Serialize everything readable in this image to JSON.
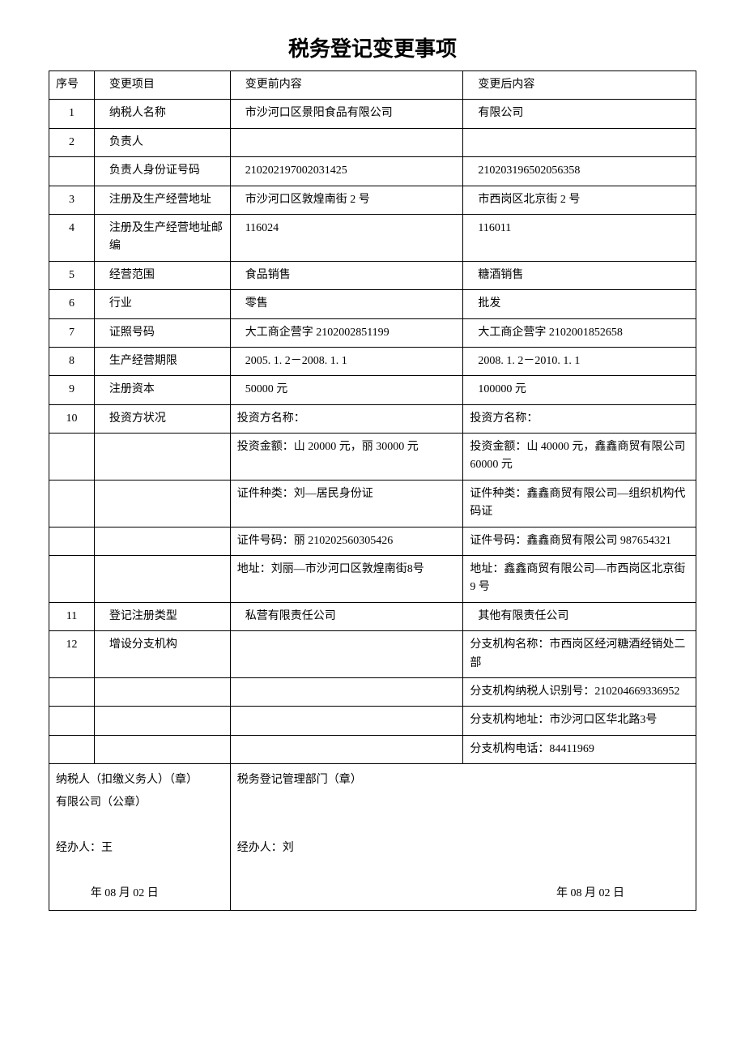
{
  "title": "税务登记变更事项",
  "header": {
    "num": "序号",
    "item": "变更项目",
    "before": "变更前内容",
    "after": "变更后内容"
  },
  "rows": [
    {
      "num": "1",
      "item": "纳税人名称",
      "before": "市沙河口区景阳食品有限公司",
      "after": "有限公司"
    },
    {
      "num": "2",
      "item": "负责人",
      "before": "",
      "after": ""
    },
    {
      "num": "",
      "item": "负责人身份证号码",
      "before": "210202197002031425",
      "after": "210203196502056358"
    },
    {
      "num": "3",
      "item": "注册及生产经营地址",
      "before": "市沙河口区敦煌南街 2 号",
      "after": "市西岗区北京街 2 号"
    },
    {
      "num": "4",
      "item": "注册及生产经营地址邮编",
      "before": "116024",
      "after": "116011"
    },
    {
      "num": "5",
      "item": "经营范围",
      "before": "食品销售",
      "after": "糖酒销售"
    },
    {
      "num": "6",
      "item": "行业",
      "before": "零售",
      "after": "批发"
    },
    {
      "num": "7",
      "item": "证照号码",
      "before": "大工商企营字 2102002851199",
      "after": "大工商企营字 2102001852658"
    },
    {
      "num": "8",
      "item": "生产经营期限",
      "before": "2005. 1. 2－2008. 1. 1",
      "after": "2008. 1. 2－2010. 1. 1"
    },
    {
      "num": "9",
      "item": "注册资本",
      "before": "50000 元",
      "after": "100000 元"
    },
    {
      "num": "10",
      "item": "投资方状况",
      "before": "投资方名称：",
      "after": "投资方名称："
    },
    {
      "num": "",
      "item": "",
      "before": "投资金额：山 20000 元，丽 30000 元",
      "after": "投资金额：山 40000 元，鑫鑫商贸有限公司 60000 元"
    },
    {
      "num": "",
      "item": "",
      "before": "证件种类：刘—居民身份证",
      "after": "证件种类：鑫鑫商贸有限公司—组织机构代码证"
    },
    {
      "num": "",
      "item": "",
      "before": "证件号码：丽 210202560305426",
      "after": "证件号码：鑫鑫商贸有限公司 987654321"
    },
    {
      "num": "",
      "item": "",
      "before": "地址：刘丽—市沙河口区敦煌南街8号",
      "after": "地址：鑫鑫商贸有限公司—市西岗区北京街 9 号"
    },
    {
      "num": "11",
      "item": "登记注册类型",
      "before": "私营有限责任公司",
      "after": "其他有限责任公司"
    },
    {
      "num": "12",
      "item": "增设分支机构",
      "before": "",
      "after": "分支机构名称：市西岗区经河糖酒经销处二部"
    },
    {
      "num": "",
      "item": "",
      "before": "",
      "after": "分支机构纳税人识别号：210204669336952"
    },
    {
      "num": "",
      "item": "",
      "before": "",
      "after": "分支机构地址：市沙河口区华北路3号"
    },
    {
      "num": "",
      "item": "",
      "before": "",
      "after": "分支机构电话：84411969"
    }
  ],
  "footer": {
    "left_line1": "纳税人（扣缴义务人）（章）",
    "left_line2": "有限公司（公章）",
    "left_handler": "经办人：王",
    "left_date": "年 08 月 02 日",
    "right_line1": "税务登记管理部门（章）",
    "right_handler": "经办人：刘",
    "right_date": "年 08 月 02 日"
  }
}
